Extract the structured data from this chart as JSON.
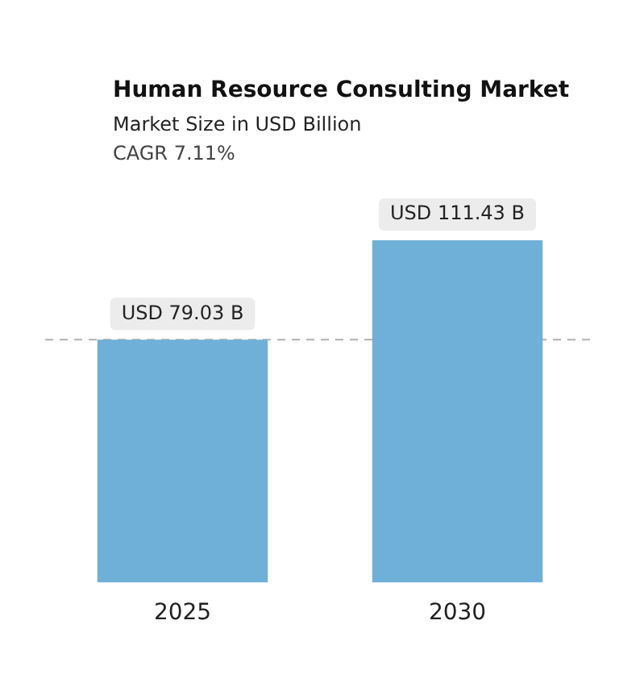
{
  "chart_data": {
    "type": "bar",
    "title": "Human Resource Consulting Market",
    "subtitle": "Market Size in USD Billion",
    "annotations": [
      "CAGR 7.11%"
    ],
    "categories": [
      "2025",
      "2030"
    ],
    "values": [
      79.03,
      111.43
    ],
    "value_labels": [
      "USD 79.03 B",
      "USD 111.43 B"
    ],
    "color": "#6fb0d8",
    "ref_lines": [
      {
        "axis": "y",
        "value": 79.03,
        "color": "#b0b0b0",
        "line_style": "dashed"
      }
    ],
    "grid": false,
    "legend": false
  }
}
